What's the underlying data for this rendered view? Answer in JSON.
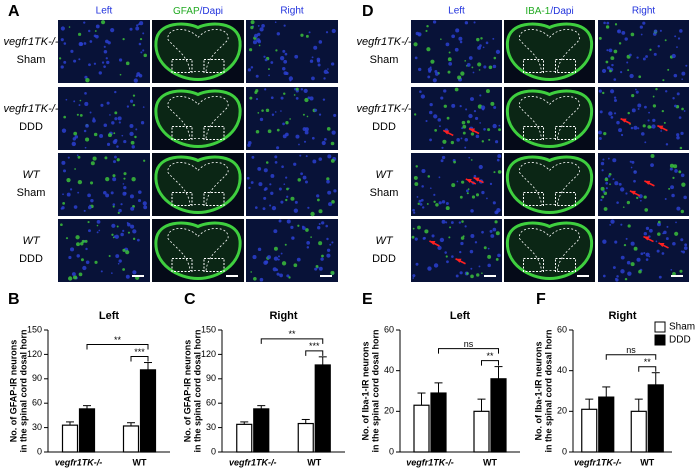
{
  "panels": [
    {
      "label": "A",
      "headers": [
        "Left",
        "GFAP",
        "/Dapi",
        "Right"
      ],
      "rows": [
        [
          "vegfr1TK-/-",
          "Sham"
        ],
        [
          "vegfr1TK-/-",
          "DDD"
        ],
        [
          "WT",
          "Sham"
        ],
        [
          "WT",
          "DDD"
        ]
      ]
    },
    {
      "label": "D",
      "headers": [
        "Left",
        "IBA-1",
        "/Dapi",
        "Right"
      ],
      "rows": [
        [
          "vegfr1TK-/-",
          "Sham"
        ],
        [
          "vegfr1TK-/-",
          "DDD"
        ],
        [
          "WT",
          "Sham"
        ],
        [
          "WT",
          "DDD"
        ]
      ]
    }
  ],
  "chart_data": [
    {
      "type": "bar",
      "label": "B",
      "title": "Left",
      "ylabel": [
        "No. of GFAP-IR neurons",
        "in the spinal cord dosal horn"
      ],
      "categories": [
        "vegfr1TK-/-",
        "WT"
      ],
      "series": [
        {
          "color": "#ffffff",
          "values": [
            33,
            32
          ],
          "errors": [
            4,
            4
          ]
        },
        {
          "color": "#000000",
          "values": [
            53,
            101
          ],
          "errors": [
            4,
            9
          ]
        }
      ],
      "ylim": [
        0,
        150
      ],
      "yticks": [
        0,
        30,
        60,
        90,
        120,
        150
      ],
      "annotations": [
        "**",
        "***"
      ]
    },
    {
      "type": "bar",
      "label": "C",
      "title": "Right",
      "ylabel": [
        "No. of GFAP-IR neurons",
        "in the spinal cord dosal horn"
      ],
      "categories": [
        "vegfr1TK-/-",
        "WT"
      ],
      "series": [
        {
          "color": "#ffffff",
          "values": [
            34,
            35
          ],
          "errors": [
            3,
            5
          ]
        },
        {
          "color": "#000000",
          "values": [
            53,
            107
          ],
          "errors": [
            4,
            10
          ]
        }
      ],
      "ylim": [
        0,
        150
      ],
      "yticks": [
        0,
        30,
        60,
        90,
        120,
        150
      ],
      "annotations": [
        "**",
        "***"
      ]
    },
    {
      "type": "bar",
      "label": "E",
      "title": "Left",
      "ylabel": [
        "No. of Iba-1-IR neurons",
        "in the spinal cord dosal horn"
      ],
      "categories": [
        "vegfr1TK-/-",
        "WT"
      ],
      "series": [
        {
          "color": "#ffffff",
          "values": [
            23,
            20
          ],
          "errors": [
            6,
            6
          ]
        },
        {
          "color": "#000000",
          "values": [
            29,
            36
          ],
          "errors": [
            5,
            6
          ]
        }
      ],
      "ylim": [
        0,
        60
      ],
      "yticks": [
        0,
        20,
        40,
        60
      ],
      "annotations": [
        "ns",
        "**"
      ]
    },
    {
      "type": "bar",
      "label": "F",
      "title": "Right",
      "ylabel": [
        "No. of Iba-1-IR neurons",
        "in the spinal cord dosal horn"
      ],
      "categories": [
        "vegfr1TK-/-",
        "WT"
      ],
      "series": [
        {
          "name": "Sham",
          "color": "#ffffff",
          "values": [
            21,
            20
          ],
          "errors": [
            5,
            6
          ]
        },
        {
          "name": "DDD",
          "color": "#000000",
          "values": [
            27,
            33
          ],
          "errors": [
            5,
            6
          ]
        }
      ],
      "ylim": [
        0,
        60
      ],
      "yticks": [
        0,
        20,
        40,
        60
      ],
      "annotations": [
        "ns",
        "**"
      ],
      "legend": "top-right"
    }
  ]
}
